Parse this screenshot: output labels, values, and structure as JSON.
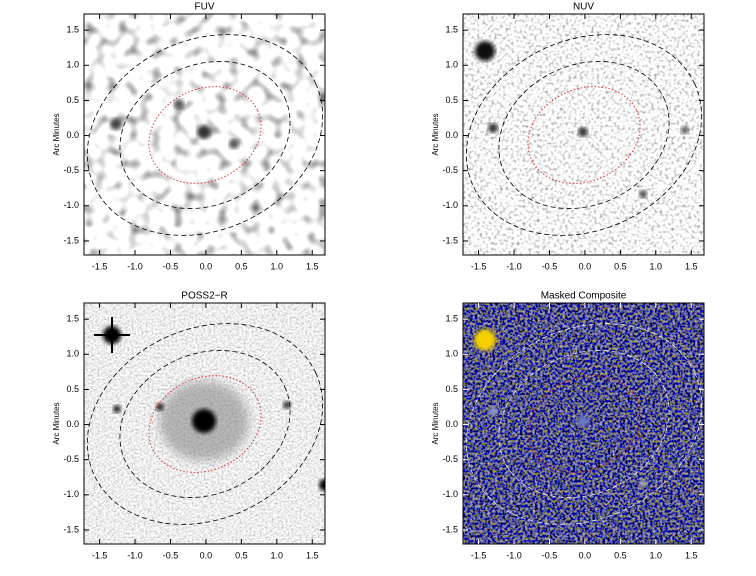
{
  "chart_data": [
    {
      "type": "image",
      "title": "FUV",
      "ylabel": "Arc Minutes",
      "colormap": "gray-inverted",
      "xlim": [
        -1.72,
        1.68
      ],
      "ylim": [
        -1.7,
        1.73
      ],
      "xticks": [
        {
          "value": -1.5,
          "label": "-1.5"
        },
        {
          "value": -1,
          "label": "-1.0"
        },
        {
          "value": -0.5,
          "label": "-0.5"
        },
        {
          "value": 0,
          "label": "0.0"
        },
        {
          "value": 0.5,
          "label": "0.5"
        },
        {
          "value": 1,
          "label": "1.0"
        },
        {
          "value": 1.5,
          "label": "1.5"
        }
      ],
      "yticks": [
        {
          "value": -1.5,
          "label": "-1.5"
        },
        {
          "value": -1,
          "label": "-1.0"
        },
        {
          "value": -0.5,
          "label": "-0.5"
        },
        {
          "value": 0,
          "label": "0.0"
        },
        {
          "value": 0.5,
          "label": "0.5"
        },
        {
          "value": 1,
          "label": "1.0"
        },
        {
          "value": 1.5,
          "label": "1.5"
        }
      ]
    },
    {
      "type": "image",
      "title": "NUV",
      "ylabel": "Arc Minutes",
      "colormap": "gray-inverted",
      "xlim": [
        -1.72,
        1.68
      ],
      "ylim": [
        -1.7,
        1.73
      ],
      "xticks": [
        {
          "value": -1.5,
          "label": "-1.5"
        },
        {
          "value": -1,
          "label": "-1.0"
        },
        {
          "value": -0.5,
          "label": "-0.5"
        },
        {
          "value": 0,
          "label": "0.0"
        },
        {
          "value": 0.5,
          "label": "0.5"
        },
        {
          "value": 1,
          "label": "1.0"
        },
        {
          "value": 1.5,
          "label": "1.5"
        }
      ],
      "yticks": [
        {
          "value": -1.5,
          "label": "-1.5"
        },
        {
          "value": -1,
          "label": "-1.0"
        },
        {
          "value": -0.5,
          "label": "-0.5"
        },
        {
          "value": 0,
          "label": "0.0"
        },
        {
          "value": 0.5,
          "label": "0.5"
        },
        {
          "value": 1,
          "label": "1.0"
        },
        {
          "value": 1.5,
          "label": "1.5"
        }
      ]
    },
    {
      "type": "image",
      "title": "POSS2−R",
      "ylabel": "Arc Minutes",
      "colormap": "gray-inverted",
      "xlim": [
        -1.72,
        1.68
      ],
      "ylim": [
        -1.7,
        1.73
      ],
      "xticks": [
        {
          "value": -1.5,
          "label": "-1.5"
        },
        {
          "value": -1,
          "label": "-1.0"
        },
        {
          "value": -0.5,
          "label": "-0.5"
        },
        {
          "value": 0,
          "label": "0.0"
        },
        {
          "value": 0.5,
          "label": "0.5"
        },
        {
          "value": 1,
          "label": "1.0"
        },
        {
          "value": 1.5,
          "label": "1.5"
        }
      ],
      "yticks": [
        {
          "value": -1.5,
          "label": "-1.5"
        },
        {
          "value": -1,
          "label": "-1.0"
        },
        {
          "value": -0.5,
          "label": "-0.5"
        },
        {
          "value": 0,
          "label": "0.0"
        },
        {
          "value": 0.5,
          "label": "0.5"
        },
        {
          "value": 1,
          "label": "1.0"
        },
        {
          "value": 1.5,
          "label": "1.5"
        }
      ]
    },
    {
      "type": "image",
      "title": "Masked Composite",
      "ylabel": "Arc Minutes",
      "colormap": "composite",
      "xlim": [
        -1.72,
        1.68
      ],
      "ylim": [
        -1.7,
        1.73
      ],
      "xticks": [
        {
          "value": -1.5,
          "label": "-1.5"
        },
        {
          "value": -1,
          "label": "-1.0"
        },
        {
          "value": -0.5,
          "label": "-0.5"
        },
        {
          "value": 0,
          "label": "0.0"
        },
        {
          "value": 0.5,
          "label": "0.5"
        },
        {
          "value": 1,
          "label": "1.0"
        },
        {
          "value": 1.5,
          "label": "1.5"
        }
      ],
      "yticks": [
        {
          "value": -1.5,
          "label": "-1.5"
        },
        {
          "value": -1,
          "label": "-1.0"
        },
        {
          "value": -0.5,
          "label": "-0.5"
        },
        {
          "value": 0,
          "label": "0.0"
        },
        {
          "value": 0.5,
          "label": "0.5"
        },
        {
          "value": 1,
          "label": "1.0"
        },
        {
          "value": 1.5,
          "label": "1.5"
        }
      ]
    }
  ]
}
